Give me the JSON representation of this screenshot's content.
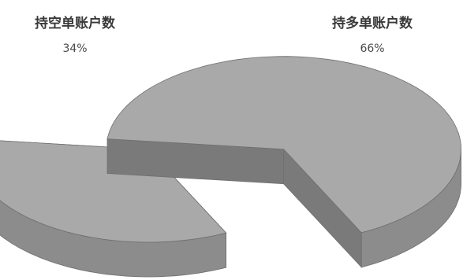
{
  "chart_data": {
    "type": "pie",
    "style": "3d-exploded",
    "slices": [
      {
        "label": "持空单账户数",
        "value": 34,
        "display": "34%",
        "color": "#a9a9a9"
      },
      {
        "label": "持多单账户数",
        "value": 66,
        "display": "66%",
        "color": "#a9a9a9"
      }
    ],
    "colors": {
      "top": "#a9a9a9",
      "side": "#8c8c8c",
      "side_dark": "#7a7a7a",
      "edge": "#6f6f6f"
    }
  }
}
